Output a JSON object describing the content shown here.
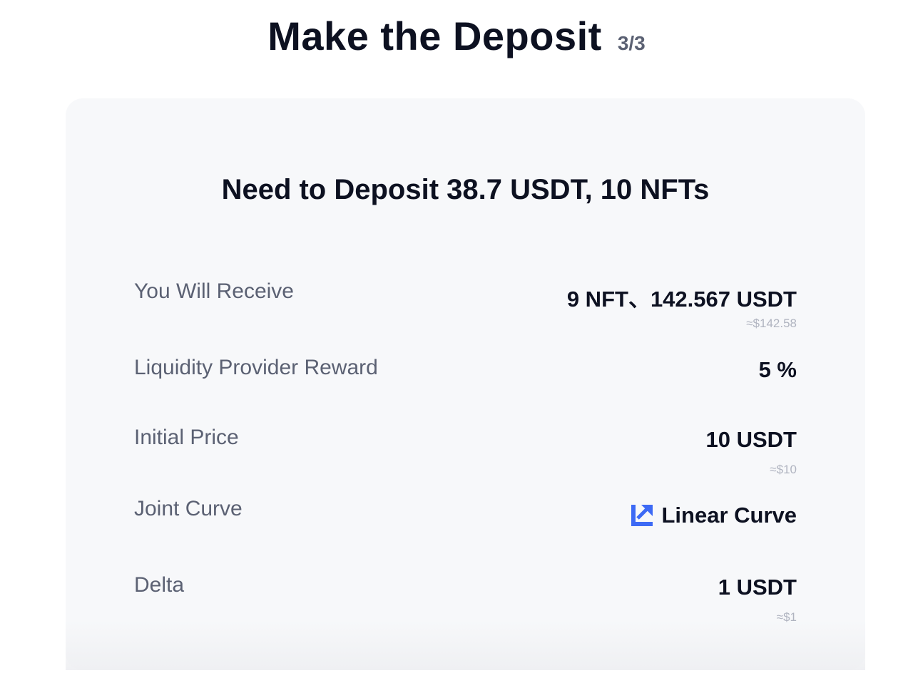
{
  "header": {
    "title": "Make the Deposit",
    "step": "3/3"
  },
  "card": {
    "title": "Need to Deposit 38.7 USDT, 10 NFTs",
    "rows": [
      {
        "label": "You Will Receive",
        "value": "9 NFT、142.567 USDT",
        "sub": "≈$142.58"
      },
      {
        "label": "Liquidity Provider Reward",
        "value": "5 %"
      },
      {
        "label": "Initial Price",
        "value": "10 USDT",
        "sub": "≈$10"
      },
      {
        "label": "Joint Curve",
        "value": "Linear Curve",
        "icon": "linear-curve-icon"
      },
      {
        "label": "Delta",
        "value": "1 USDT",
        "sub": "≈$1"
      }
    ]
  },
  "colors": {
    "accent": "#3d6af5",
    "label": "#5b6173",
    "text": "#0d1121"
  }
}
